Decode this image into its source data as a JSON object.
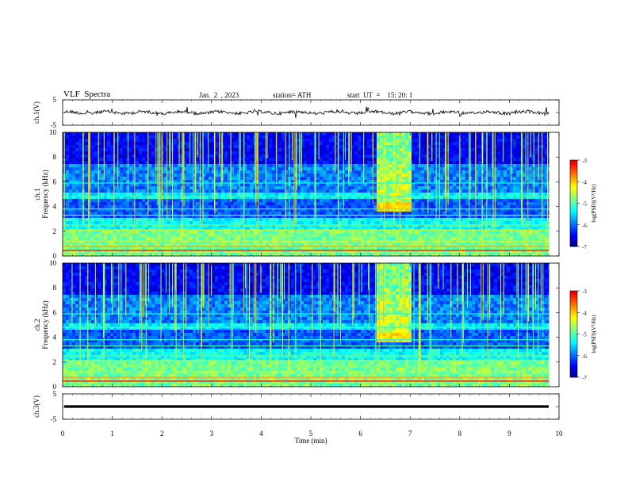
{
  "header": {
    "title": "VLF  Spectra",
    "date": "Jan.  2  , 2023",
    "station": "station= ATH",
    "start": "start  UT  =    15: 20: 1"
  },
  "chart_data": [
    {
      "type": "line",
      "name": "ch1-waveform",
      "ylabel": "ch.1(V)",
      "ylim": [
        -5,
        5
      ],
      "yticks": [
        "5",
        "-5"
      ],
      "x": [
        0,
        1,
        2,
        3,
        4,
        5,
        6,
        7,
        8,
        9,
        9.8
      ],
      "values": [
        0,
        0,
        0,
        0,
        0,
        0,
        0,
        0,
        0,
        0,
        0
      ]
    },
    {
      "type": "heatmap",
      "name": "ch1-spectrogram",
      "ylabel": "ch.1\nFrequency  (kHz)",
      "ylim": [
        0,
        10
      ],
      "yticks": [
        "0",
        "2",
        "4",
        "6",
        "8",
        "10"
      ],
      "colorbar": {
        "label": "log(PSD)(V²/Hz)",
        "range": [
          -7,
          -3
        ],
        "ticks": [
          "-3",
          "-4",
          "-5",
          "-6",
          "-7"
        ]
      }
    },
    {
      "type": "heatmap",
      "name": "ch2-spectrogram",
      "ylabel": "ch.2\nFrequency  (kHz)",
      "ylim": [
        0,
        10
      ],
      "yticks": [
        "0",
        "2",
        "4",
        "6",
        "8",
        "10"
      ],
      "colorbar": {
        "label": "log(PSD)(V²/Hz)",
        "range": [
          -7,
          -3
        ],
        "ticks": [
          "-3",
          "-4",
          "-5",
          "-6",
          "-7"
        ]
      }
    },
    {
      "type": "line",
      "name": "ch3-waveform",
      "ylabel": "ch.3(V)",
      "ylim": [
        -5,
        5
      ],
      "yticks": [
        "5",
        "-5"
      ],
      "x": [
        0,
        1,
        2,
        3,
        4,
        5,
        6,
        7,
        8,
        9,
        9.8
      ],
      "values": [
        0,
        0,
        0,
        0,
        0,
        0,
        0,
        0,
        0,
        0,
        0
      ]
    }
  ],
  "x_axis": {
    "label": "Time  (min)",
    "range": [
      0,
      10
    ],
    "ticks": [
      "0",
      "1",
      "2",
      "3",
      "4",
      "5",
      "6",
      "7",
      "8",
      "9",
      "10"
    ]
  }
}
